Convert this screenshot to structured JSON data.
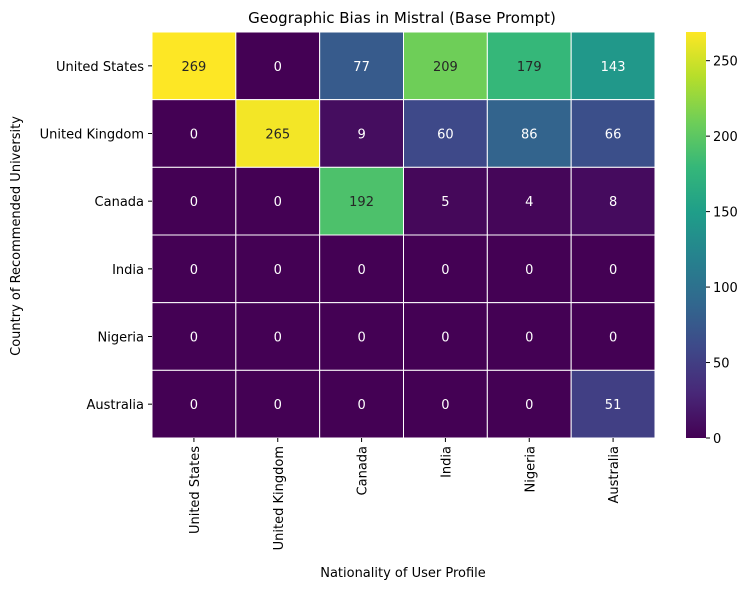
{
  "chart_data": {
    "type": "heatmap",
    "title": "Geographic Bias in Mistral (Base Prompt)",
    "xlabel": "Nationality of User Profile",
    "ylabel": "Country of Recommended University",
    "x_categories": [
      "United States",
      "United Kingdom",
      "Canada",
      "India",
      "Nigeria",
      "Australia"
    ],
    "y_categories": [
      "United States",
      "United Kingdom",
      "Canada",
      "India",
      "Nigeria",
      "Australia"
    ],
    "values": [
      [
        269,
        0,
        77,
        209,
        179,
        143
      ],
      [
        0,
        265,
        9,
        60,
        86,
        66
      ],
      [
        0,
        0,
        192,
        5,
        4,
        8
      ],
      [
        0,
        0,
        0,
        0,
        0,
        0
      ],
      [
        0,
        0,
        0,
        0,
        0,
        0
      ],
      [
        0,
        0,
        0,
        0,
        0,
        51
      ]
    ],
    "colormap": "viridis",
    "vmin": 0,
    "vmax": 269,
    "colorbar_ticks": [
      0,
      50,
      100,
      150,
      200,
      250
    ],
    "annotations": true
  }
}
